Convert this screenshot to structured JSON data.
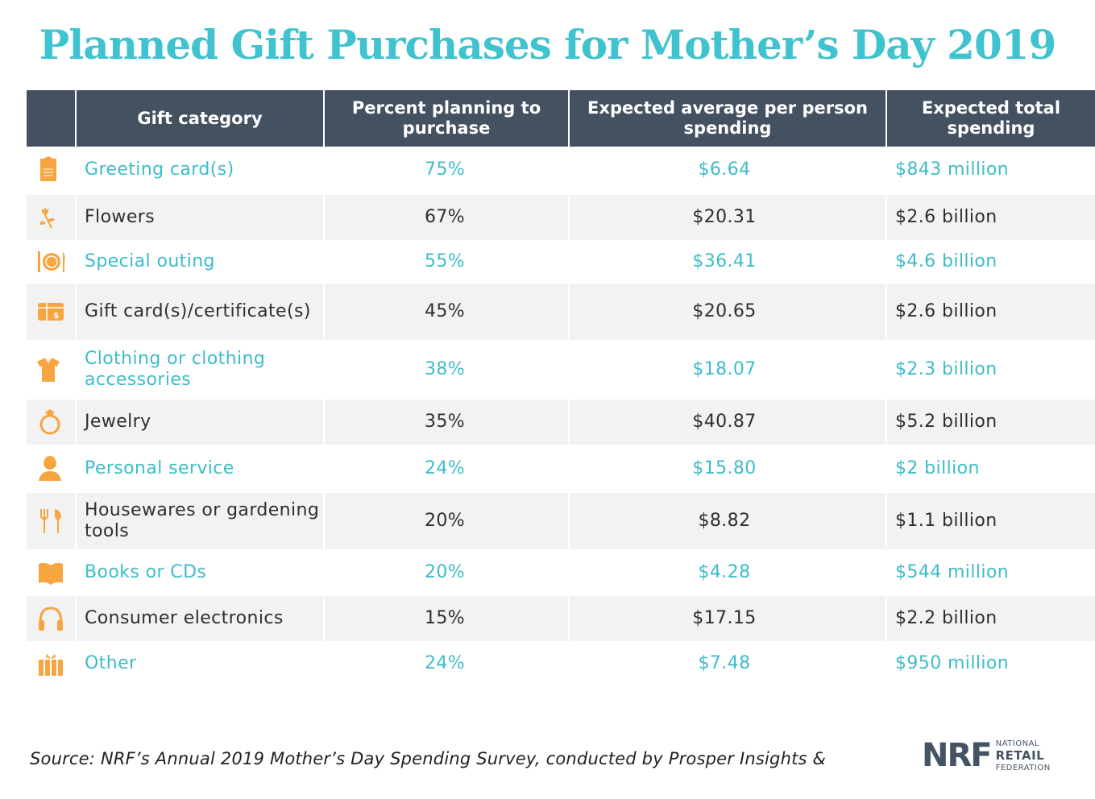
{
  "title": "Planned Gift Purchases for Mother’s Day 2019",
  "chart_data": {
    "type": "table",
    "title": "Planned Gift Purchases for Mother’s Day 2019",
    "columns": [
      "Gift category",
      "Percent planning to purchase",
      "Expected average per person spending",
      "Expected total spending"
    ],
    "rows": [
      {
        "icon": "greeting-card-icon",
        "category": "Greeting card(s)",
        "percent": "75%",
        "avg": "$6.64",
        "total": "$843 million"
      },
      {
        "icon": "flowers-icon",
        "category": "Flowers",
        "percent": "67%",
        "avg": "$20.31",
        "total": "$2.6 billion"
      },
      {
        "icon": "plate-fork-knife-icon",
        "category": "Special outing",
        "percent": "55%",
        "avg": "$36.41",
        "total": "$4.6 billion"
      },
      {
        "icon": "gift-card-icon",
        "category": "Gift card(s)/certificate(s)",
        "percent": "45%",
        "avg": "$20.65",
        "total": "$2.6 billion"
      },
      {
        "icon": "clothing-icon",
        "category": "Clothing or clothing accessories",
        "percent": "38%",
        "avg": "$18.07",
        "total": "$2.3 billion"
      },
      {
        "icon": "ring-icon",
        "category": "Jewelry",
        "percent": "35%",
        "avg": "$40.87",
        "total": "$5.2 billion"
      },
      {
        "icon": "person-service-icon",
        "category": "Personal service",
        "percent": "24%",
        "avg": "$15.80",
        "total": "$2 billion"
      },
      {
        "icon": "garden-tools-icon",
        "category": "Housewares or gardening tools",
        "percent": "20%",
        "avg": "$8.82",
        "total": "$1.1 billion"
      },
      {
        "icon": "book-icon",
        "category": "Books or CDs",
        "percent": "20%",
        "avg": "$4.28",
        "total": "$544 million"
      },
      {
        "icon": "headphones-icon",
        "category": "Consumer electronics",
        "percent": "15%",
        "avg": "$17.15",
        "total": "$2.2 billion"
      },
      {
        "icon": "gift-box-icon",
        "category": "Other",
        "percent": "24%",
        "avg": "$7.48",
        "total": "$950 million"
      }
    ]
  },
  "source": "Source: NRF’s Annual 2019 Mother’s Day Spending Survey, conducted by Prosper Insights &",
  "logo": {
    "mark": "NRF",
    "line1": "NATIONAL",
    "line2": "RETAIL",
    "line3": "FEDERATION"
  },
  "colors": {
    "accent": "#3fc3ce",
    "header_bg": "#445161",
    "icon": "#f7a541",
    "row_alt": "#f2f2f2"
  }
}
